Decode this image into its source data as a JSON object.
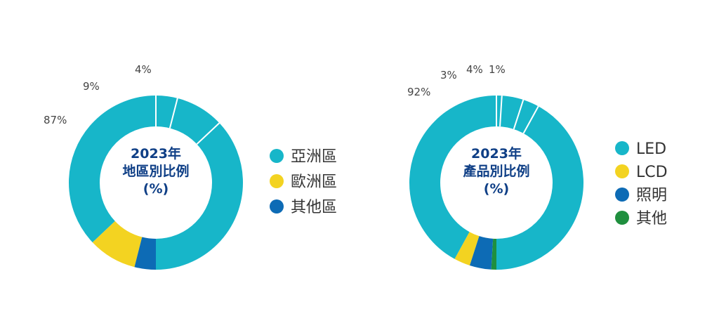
{
  "chart_data": [
    {
      "type": "pie",
      "donut": true,
      "title_lines": [
        "2023年",
        "地區別比例",
        "(%)"
      ],
      "slices": [
        {
          "name": "亞洲區",
          "value": 87,
          "label": "87%",
          "color": "#17b6c9"
        },
        {
          "name": "歐洲區",
          "value": 9,
          "label": "9%",
          "color": "#f3d321"
        },
        {
          "name": "其他區",
          "value": 4,
          "label": "4%",
          "color": "#0d6bb5"
        }
      ],
      "legend_position": "right"
    },
    {
      "type": "pie",
      "donut": true,
      "title_lines": [
        "2023年",
        "產品別比例",
        "(%)"
      ],
      "slices": [
        {
          "name": "LED",
          "value": 92,
          "label": "92%",
          "color": "#17b6c9"
        },
        {
          "name": "LCD",
          "value": 3,
          "label": "3%",
          "color": "#f3d321"
        },
        {
          "name": "照明",
          "value": 4,
          "label": "4%",
          "color": "#0d6bb5"
        },
        {
          "name": "其他",
          "value": 1,
          "label": "1%",
          "color": "#1f8f3e"
        }
      ],
      "legend_position": "right"
    }
  ]
}
